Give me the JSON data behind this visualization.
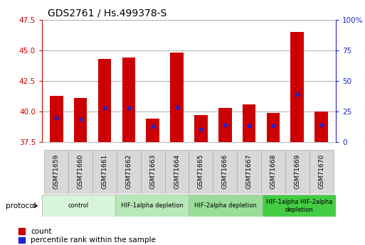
{
  "title": "GDS2761 / Hs.499378-S",
  "samples": [
    "GSM71659",
    "GSM71660",
    "GSM71661",
    "GSM71662",
    "GSM71663",
    "GSM71664",
    "GSM71665",
    "GSM71666",
    "GSM71667",
    "GSM71668",
    "GSM71669",
    "GSM71670"
  ],
  "count_values": [
    41.3,
    41.1,
    44.3,
    44.4,
    39.4,
    44.8,
    39.7,
    40.3,
    40.6,
    39.9,
    46.5,
    40.0
  ],
  "percentile_positions": [
    39.5,
    39.35,
    40.3,
    40.3,
    38.8,
    40.35,
    38.55,
    38.9,
    38.85,
    38.85,
    41.4,
    38.9
  ],
  "ylim": [
    37.5,
    47.5
  ],
  "yticks": [
    37.5,
    40.0,
    42.5,
    45.0,
    47.5
  ],
  "y2lim": [
    0,
    100
  ],
  "y2ticks": [
    0,
    25,
    50,
    75,
    100
  ],
  "bar_bottom": 37.5,
  "bar_color": "#cc0000",
  "percentile_color": "#2222cc",
  "bg_color": "#ffffff",
  "grid_color": "#000000",
  "tick_label_bg": "#d8d8d8",
  "protocol_groups": [
    {
      "label": "control",
      "start": 0,
      "end": 3,
      "color": "#d9f5d9"
    },
    {
      "label": "HIF-1alpha depletion",
      "start": 3,
      "end": 6,
      "color": "#b8e8b8"
    },
    {
      "label": "HIF-2alpha depletion",
      "start": 6,
      "end": 9,
      "color": "#99dd99"
    },
    {
      "label": "HIF-1alpha HIF-2alpha\ndepletion",
      "start": 9,
      "end": 12,
      "color": "#44cc44"
    }
  ],
  "protocol_label": "protocol",
  "legend_count_label": "count",
  "legend_percentile_label": "percentile rank within the sample",
  "ylabel_color": "#cc0000",
  "y2label_color": "#2222cc",
  "title_fontsize": 10,
  "bar_width": 0.55
}
